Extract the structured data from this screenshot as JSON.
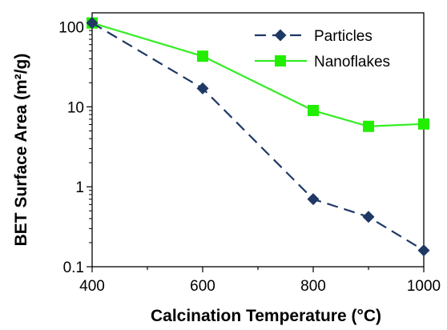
{
  "chart_data": {
    "type": "line",
    "title": "",
    "xlabel": "Calcination Temperature (°C)",
    "ylabel": "BET Surface Area (m²/g)",
    "xlim": [
      400,
      1000
    ],
    "ylim": [
      0.1,
      150
    ],
    "yscale": "log",
    "grid": false,
    "legend_position": "top-right",
    "x_ticks": [
      400,
      600,
      800,
      1000
    ],
    "x_tick_labels": [
      "400",
      "600",
      "800",
      "1000"
    ],
    "y_ticks": [
      0.1,
      1,
      10,
      100
    ],
    "y_tick_labels": [
      "0.1",
      "1",
      "10",
      "100"
    ],
    "series": [
      {
        "name": "Particles",
        "color": "#1f3864",
        "line_style": "dashed",
        "marker": "diamond",
        "x": [
          400,
          600,
          800,
          900,
          1000
        ],
        "y": [
          112,
          17,
          0.7,
          0.42,
          0.16
        ]
      },
      {
        "name": "Nanoflakes",
        "color": "#33ee22",
        "marker_color": "#22ee00",
        "line_style": "solid",
        "marker": "square",
        "x": [
          400,
          600,
          800,
          900,
          1000
        ],
        "y": [
          112,
          43,
          9,
          5.7,
          6.1
        ]
      }
    ]
  }
}
